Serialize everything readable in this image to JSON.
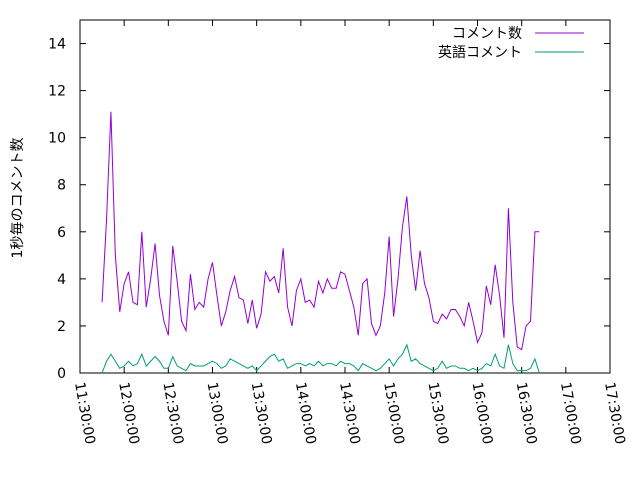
{
  "chart_data": {
    "type": "line",
    "title": "",
    "xlabel": "",
    "ylabel": "1秒毎のコメント数",
    "xlim": [
      "11:30:00",
      "17:30:00"
    ],
    "ylim": [
      0,
      15
    ],
    "x_tick_labels": [
      "11:30:00",
      "12:00:00",
      "12:30:00",
      "13:00:00",
      "13:30:00",
      "14:00:00",
      "14:30:00",
      "15:00:00",
      "15:30:00",
      "16:00:00",
      "16:30:00",
      "17:00:00",
      "17:30:00"
    ],
    "y_tick_labels": [
      "0",
      "2",
      "4",
      "6",
      "8",
      "10",
      "12",
      "14"
    ],
    "grid": false,
    "legend_position": "top-right",
    "series": [
      {
        "name": "コメント数",
        "color": "#9400d3",
        "points": [
          [
            "11:45:00",
            3.0
          ],
          [
            "11:48:00",
            6.5
          ],
          [
            "11:51:00",
            11.1
          ],
          [
            "11:54:00",
            5.0
          ],
          [
            "11:57:00",
            2.6
          ],
          [
            "12:00:00",
            3.8
          ],
          [
            "12:03:00",
            4.3
          ],
          [
            "12:06:00",
            3.0
          ],
          [
            "12:09:00",
            2.9
          ],
          [
            "12:12:00",
            6.0
          ],
          [
            "12:15:00",
            2.8
          ],
          [
            "12:18:00",
            4.0
          ],
          [
            "12:21:00",
            5.5
          ],
          [
            "12:24:00",
            3.3
          ],
          [
            "12:27:00",
            2.2
          ],
          [
            "12:30:00",
            1.6
          ],
          [
            "12:33:00",
            5.4
          ],
          [
            "12:36:00",
            3.9
          ],
          [
            "12:39:00",
            2.2
          ],
          [
            "12:42:00",
            1.8
          ],
          [
            "12:45:00",
            4.2
          ],
          [
            "12:48:00",
            2.7
          ],
          [
            "12:51:00",
            3.0
          ],
          [
            "12:54:00",
            2.8
          ],
          [
            "12:57:00",
            4.0
          ],
          [
            "13:00:00",
            4.7
          ],
          [
            "13:03:00",
            3.3
          ],
          [
            "13:06:00",
            2.0
          ],
          [
            "13:09:00",
            2.6
          ],
          [
            "13:12:00",
            3.5
          ],
          [
            "13:15:00",
            4.1
          ],
          [
            "13:18:00",
            3.2
          ],
          [
            "13:21:00",
            3.1
          ],
          [
            "13:24:00",
            2.1
          ],
          [
            "13:27:00",
            3.1
          ],
          [
            "13:30:00",
            1.9
          ],
          [
            "13:33:00",
            2.5
          ],
          [
            "13:36:00",
            4.3
          ],
          [
            "13:39:00",
            3.9
          ],
          [
            "13:42:00",
            4.1
          ],
          [
            "13:45:00",
            3.4
          ],
          [
            "13:48:00",
            5.3
          ],
          [
            "13:51:00",
            2.8
          ],
          [
            "13:54:00",
            2.0
          ],
          [
            "13:57:00",
            3.5
          ],
          [
            "14:00:00",
            4.0
          ],
          [
            "14:03:00",
            3.0
          ],
          [
            "14:06:00",
            3.1
          ],
          [
            "14:09:00",
            2.8
          ],
          [
            "14:12:00",
            3.9
          ],
          [
            "14:15:00",
            3.4
          ],
          [
            "14:18:00",
            4.0
          ],
          [
            "14:21:00",
            3.6
          ],
          [
            "14:24:00",
            3.6
          ],
          [
            "14:27:00",
            4.3
          ],
          [
            "14:30:00",
            4.2
          ],
          [
            "14:33:00",
            3.5
          ],
          [
            "14:36:00",
            2.8
          ],
          [
            "14:39:00",
            1.6
          ],
          [
            "14:42:00",
            3.8
          ],
          [
            "14:45:00",
            4.0
          ],
          [
            "14:48:00",
            2.1
          ],
          [
            "14:51:00",
            1.6
          ],
          [
            "14:54:00",
            2.0
          ],
          [
            "14:57:00",
            3.4
          ],
          [
            "15:00:00",
            5.8
          ],
          [
            "15:03:00",
            2.4
          ],
          [
            "15:06:00",
            4.0
          ],
          [
            "15:09:00",
            6.2
          ],
          [
            "15:12:00",
            7.5
          ],
          [
            "15:15:00",
            5.0
          ],
          [
            "15:18:00",
            3.5
          ],
          [
            "15:21:00",
            5.2
          ],
          [
            "15:24:00",
            3.8
          ],
          [
            "15:27:00",
            3.2
          ],
          [
            "15:30:00",
            2.2
          ],
          [
            "15:33:00",
            2.1
          ],
          [
            "15:36:00",
            2.5
          ],
          [
            "15:39:00",
            2.3
          ],
          [
            "15:42:00",
            2.7
          ],
          [
            "15:45:00",
            2.7
          ],
          [
            "15:48:00",
            2.4
          ],
          [
            "15:51:00",
            2.0
          ],
          [
            "15:54:00",
            3.0
          ],
          [
            "15:57:00",
            2.2
          ],
          [
            "16:00:00",
            1.3
          ],
          [
            "16:03:00",
            1.7
          ],
          [
            "16:06:00",
            3.7
          ],
          [
            "16:09:00",
            2.9
          ],
          [
            "16:12:00",
            4.6
          ],
          [
            "16:15:00",
            3.3
          ],
          [
            "16:18:00",
            1.5
          ],
          [
            "16:21:00",
            7.0
          ],
          [
            "16:24:00",
            3.0
          ],
          [
            "16:27:00",
            1.1
          ],
          [
            "16:30:00",
            1.0
          ],
          [
            "16:33:00",
            2.0
          ],
          [
            "16:36:00",
            2.2
          ],
          [
            "16:39:00",
            6.0
          ],
          [
            "16:42:00",
            6.0
          ]
        ]
      },
      {
        "name": "英語コメント",
        "color": "#009e73",
        "points": [
          [
            "11:45:00",
            0.0
          ],
          [
            "11:48:00",
            0.5
          ],
          [
            "11:51:00",
            0.8
          ],
          [
            "11:54:00",
            0.5
          ],
          [
            "11:57:00",
            0.2
          ],
          [
            "12:00:00",
            0.3
          ],
          [
            "12:03:00",
            0.5
          ],
          [
            "12:06:00",
            0.3
          ],
          [
            "12:09:00",
            0.4
          ],
          [
            "12:12:00",
            0.8
          ],
          [
            "12:15:00",
            0.3
          ],
          [
            "12:18:00",
            0.5
          ],
          [
            "12:21:00",
            0.7
          ],
          [
            "12:24:00",
            0.5
          ],
          [
            "12:27:00",
            0.2
          ],
          [
            "12:30:00",
            0.2
          ],
          [
            "12:33:00",
            0.7
          ],
          [
            "12:36:00",
            0.3
          ],
          [
            "12:39:00",
            0.2
          ],
          [
            "12:42:00",
            0.1
          ],
          [
            "12:45:00",
            0.4
          ],
          [
            "12:48:00",
            0.3
          ],
          [
            "12:51:00",
            0.3
          ],
          [
            "12:54:00",
            0.3
          ],
          [
            "12:57:00",
            0.4
          ],
          [
            "13:00:00",
            0.5
          ],
          [
            "13:03:00",
            0.4
          ],
          [
            "13:06:00",
            0.2
          ],
          [
            "13:09:00",
            0.3
          ],
          [
            "13:12:00",
            0.6
          ],
          [
            "13:15:00",
            0.5
          ],
          [
            "13:18:00",
            0.4
          ],
          [
            "13:21:00",
            0.3
          ],
          [
            "13:24:00",
            0.2
          ],
          [
            "13:27:00",
            0.3
          ],
          [
            "13:30:00",
            0.1
          ],
          [
            "13:33:00",
            0.3
          ],
          [
            "13:36:00",
            0.5
          ],
          [
            "13:39:00",
            0.7
          ],
          [
            "13:42:00",
            0.8
          ],
          [
            "13:45:00",
            0.5
          ],
          [
            "13:48:00",
            0.6
          ],
          [
            "13:51:00",
            0.2
          ],
          [
            "13:54:00",
            0.3
          ],
          [
            "13:57:00",
            0.4
          ],
          [
            "14:00:00",
            0.4
          ],
          [
            "14:03:00",
            0.3
          ],
          [
            "14:06:00",
            0.4
          ],
          [
            "14:09:00",
            0.3
          ],
          [
            "14:12:00",
            0.5
          ],
          [
            "14:15:00",
            0.3
          ],
          [
            "14:18:00",
            0.4
          ],
          [
            "14:21:00",
            0.4
          ],
          [
            "14:24:00",
            0.3
          ],
          [
            "14:27:00",
            0.5
          ],
          [
            "14:30:00",
            0.4
          ],
          [
            "14:33:00",
            0.4
          ],
          [
            "14:36:00",
            0.3
          ],
          [
            "14:39:00",
            0.1
          ],
          [
            "14:42:00",
            0.4
          ],
          [
            "14:45:00",
            0.3
          ],
          [
            "14:48:00",
            0.2
          ],
          [
            "14:51:00",
            0.1
          ],
          [
            "14:54:00",
            0.2
          ],
          [
            "14:57:00",
            0.4
          ],
          [
            "15:00:00",
            0.6
          ],
          [
            "15:03:00",
            0.3
          ],
          [
            "15:06:00",
            0.6
          ],
          [
            "15:09:00",
            0.8
          ],
          [
            "15:12:00",
            1.2
          ],
          [
            "15:15:00",
            0.5
          ],
          [
            "15:18:00",
            0.6
          ],
          [
            "15:21:00",
            0.4
          ],
          [
            "15:24:00",
            0.3
          ],
          [
            "15:27:00",
            0.2
          ],
          [
            "15:30:00",
            0.1
          ],
          [
            "15:33:00",
            0.2
          ],
          [
            "15:36:00",
            0.5
          ],
          [
            "15:39:00",
            0.2
          ],
          [
            "15:42:00",
            0.3
          ],
          [
            "15:45:00",
            0.3
          ],
          [
            "15:48:00",
            0.2
          ],
          [
            "15:51:00",
            0.2
          ],
          [
            "15:54:00",
            0.1
          ],
          [
            "15:57:00",
            0.2
          ],
          [
            "16:00:00",
            0.1
          ],
          [
            "16:03:00",
            0.2
          ],
          [
            "16:06:00",
            0.4
          ],
          [
            "16:09:00",
            0.3
          ],
          [
            "16:12:00",
            0.8
          ],
          [
            "16:15:00",
            0.3
          ],
          [
            "16:18:00",
            0.2
          ],
          [
            "16:21:00",
            1.2
          ],
          [
            "16:24:00",
            0.4
          ],
          [
            "16:27:00",
            0.1
          ],
          [
            "16:30:00",
            0.1
          ],
          [
            "16:33:00",
            0.1
          ],
          [
            "16:36:00",
            0.2
          ],
          [
            "16:39:00",
            0.6
          ],
          [
            "16:42:00",
            0.0
          ]
        ]
      }
    ]
  }
}
